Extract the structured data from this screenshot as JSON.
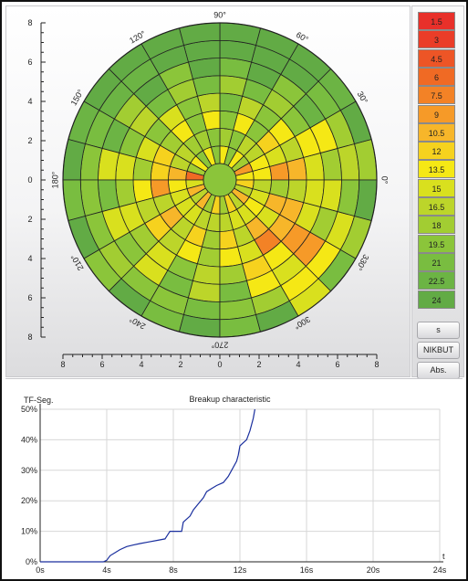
{
  "polar_map": {
    "angle_labels": [
      "0°",
      "30°",
      "60°",
      "90°",
      "120°",
      "150°",
      "180°",
      "210°",
      "240°",
      "270°",
      "300°",
      "330°"
    ],
    "y_ticks_top": [
      "8",
      "6",
      "4",
      "2",
      "0"
    ],
    "y_ticks_bottom": [
      "2",
      "4",
      "6",
      "8"
    ],
    "x_ticks": [
      "8",
      "6",
      "4",
      "2",
      "0",
      "2",
      "4",
      "6",
      "8"
    ],
    "rings": 8,
    "sectors": 24
  },
  "color_scale": [
    {
      "value": "1.5",
      "color": "#e8302a"
    },
    {
      "value": "3",
      "color": "#ea3d28"
    },
    {
      "value": "4.5",
      "color": "#ed5526"
    },
    {
      "value": "6",
      "color": "#f06a24"
    },
    {
      "value": "7.5",
      "color": "#f38226"
    },
    {
      "value": "9",
      "color": "#f69a28"
    },
    {
      "value": "10.5",
      "color": "#f7b62a"
    },
    {
      "value": "12",
      "color": "#f6d21e"
    },
    {
      "value": "13.5",
      "color": "#f5e815"
    },
    {
      "value": "15",
      "color": "#d9e01e"
    },
    {
      "value": "16.5",
      "color": "#bcd52a"
    },
    {
      "value": "18",
      "color": "#a2cd32"
    },
    {
      "value": "19.5",
      "color": "#8bc53a"
    },
    {
      "value": "21",
      "color": "#79bd40"
    },
    {
      "value": "22.5",
      "color": "#6cb444"
    },
    {
      "value": "24",
      "color": "#62ab45"
    }
  ],
  "buttons": {
    "s": "s",
    "nikbut": "NIKBUT",
    "abs": "Abs."
  },
  "chart_data": {
    "type": "line",
    "title": "Breakup characteristic",
    "ylabel": "TF-Seg.",
    "xlabel": "t",
    "x_ticks": [
      "0s",
      "4s",
      "8s",
      "12s",
      "16s",
      "20s",
      "24s"
    ],
    "y_ticks": [
      "0%",
      "10%",
      "20%",
      "30%",
      "40%",
      "50%"
    ],
    "xlim": [
      0,
      24
    ],
    "ylim": [
      0,
      50
    ],
    "grid": true,
    "series": [
      {
        "color": "#1a2f9e",
        "x": [
          0,
          3.8,
          4.0,
          4.2,
          4.5,
          4.8,
          5.2,
          5.6,
          6.0,
          6.5,
          7.0,
          7.5,
          7.8,
          8.5,
          8.6,
          9.0,
          9.2,
          9.5,
          9.8,
          10.0,
          10.3,
          10.6,
          11.0,
          11.3,
          11.5,
          11.8,
          11.9,
          12.0,
          12.2,
          12.4,
          12.6,
          12.8,
          12.9
        ],
        "y": [
          0,
          0,
          0.5,
          2,
          3,
          4,
          5,
          5.5,
          6,
          6.5,
          7,
          7.5,
          10,
          10,
          13,
          15,
          17,
          19,
          21,
          23,
          24,
          25,
          26,
          28,
          30,
          33,
          35,
          38,
          39,
          40,
          43,
          47,
          50
        ]
      }
    ]
  }
}
